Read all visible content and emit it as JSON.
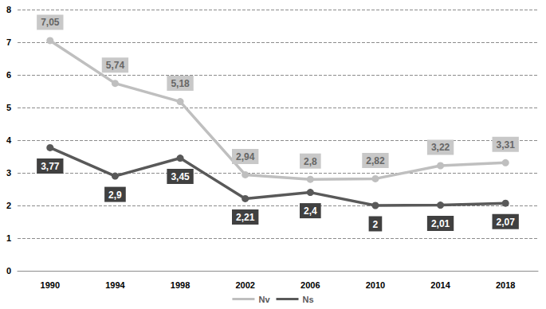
{
  "chart_data": {
    "type": "line",
    "categories": [
      "1990",
      "1994",
      "1998",
      "2002",
      "2006",
      "2010",
      "2014",
      "2018"
    ],
    "series": [
      {
        "name": "Nv",
        "color": "#bfbfbf",
        "values": [
          7.05,
          5.74,
          5.18,
          2.94,
          2.8,
          2.82,
          3.22,
          3.31
        ],
        "value_labels": [
          "7,05",
          "5,74",
          "5,18",
          "2,94",
          "2,8",
          "2,82",
          "3,22",
          "3,31"
        ]
      },
      {
        "name": "Ns",
        "color": "#595959",
        "values": [
          3.77,
          2.9,
          3.45,
          2.21,
          2.4,
          2,
          2.01,
          2.07
        ],
        "value_labels": [
          "3,77",
          "2,9",
          "3,45",
          "2,21",
          "2,4",
          "2",
          "2,01",
          "2,07"
        ]
      }
    ],
    "ylim": [
      0,
      8
    ],
    "yticks": [
      0,
      1,
      2,
      3,
      4,
      5,
      6,
      7,
      8
    ],
    "grid": true,
    "legend": "bottom",
    "data_labels": true,
    "marker": "circle"
  }
}
